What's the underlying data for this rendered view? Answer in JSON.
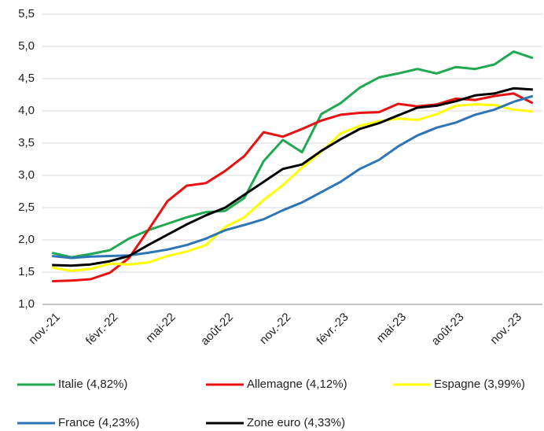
{
  "chart_data": {
    "type": "line",
    "categories": [
      "nov.-21",
      null,
      null,
      "févr.-22",
      null,
      null,
      "mai-22",
      null,
      null,
      "août-22",
      null,
      null,
      "nov.-22",
      null,
      null,
      "févr.-23",
      null,
      null,
      "mai-23",
      null,
      null,
      "août-23",
      null,
      null,
      "nov.-23",
      null
    ],
    "series": [
      {
        "name": "Italie (4,82%)",
        "color": "#1faa52",
        "values": [
          1.8,
          1.73,
          1.78,
          1.84,
          2.02,
          2.15,
          2.25,
          2.35,
          2.43,
          2.45,
          2.65,
          3.22,
          3.55,
          3.36,
          3.95,
          4.12,
          4.36,
          4.52,
          4.58,
          4.65,
          4.58,
          4.68,
          4.65,
          4.72,
          4.92,
          4.82
        ]
      },
      {
        "name": "Allemagne (4,12%)",
        "color": "#e81010",
        "values": [
          1.36,
          1.37,
          1.39,
          1.49,
          1.72,
          2.15,
          2.6,
          2.84,
          2.88,
          3.07,
          3.3,
          3.67,
          3.6,
          3.72,
          3.85,
          3.94,
          3.97,
          3.98,
          4.11,
          4.07,
          4.1,
          4.19,
          4.17,
          4.23,
          4.27,
          4.12
        ]
      },
      {
        "name": "Espagne (3,99%)",
        "color": "#ffff00",
        "values": [
          1.57,
          1.52,
          1.55,
          1.63,
          1.62,
          1.65,
          1.75,
          1.82,
          1.92,
          2.2,
          2.35,
          2.62,
          2.85,
          3.12,
          3.37,
          3.65,
          3.77,
          3.84,
          3.88,
          3.86,
          3.95,
          4.08,
          4.1,
          4.09,
          4.02,
          3.99
        ]
      },
      {
        "name": "France (4,23%)",
        "color": "#2e75b6",
        "values": [
          1.75,
          1.72,
          1.74,
          1.75,
          1.76,
          1.8,
          1.85,
          1.92,
          2.02,
          2.15,
          2.23,
          2.32,
          2.46,
          2.58,
          2.74,
          2.9,
          3.1,
          3.24,
          3.45,
          3.62,
          3.74,
          3.82,
          3.94,
          4.02,
          4.14,
          4.23
        ]
      },
      {
        "name": "Zone euro (4,33%)",
        "color": "#000000",
        "values": [
          1.61,
          1.6,
          1.62,
          1.67,
          1.75,
          1.92,
          2.08,
          2.24,
          2.38,
          2.5,
          2.7,
          2.9,
          3.1,
          3.17,
          3.38,
          3.56,
          3.72,
          3.81,
          3.93,
          4.05,
          4.08,
          4.15,
          4.24,
          4.27,
          4.35,
          4.33
        ]
      }
    ],
    "ylim": [
      1.0,
      5.5
    ],
    "yticks": [
      {
        "value": 1.0,
        "label": "1,0"
      },
      {
        "value": 1.5,
        "label": "1,5"
      },
      {
        "value": 2.0,
        "label": "2,0"
      },
      {
        "value": 2.5,
        "label": "2,5"
      },
      {
        "value": 3.0,
        "label": "3,0"
      },
      {
        "value": 3.5,
        "label": "3,5"
      },
      {
        "value": 4.0,
        "label": "4,0"
      },
      {
        "value": 4.5,
        "label": "4,5"
      },
      {
        "value": 5.0,
        "label": "5,0"
      },
      {
        "value": 5.5,
        "label": "5,5"
      }
    ],
    "grid": true
  }
}
